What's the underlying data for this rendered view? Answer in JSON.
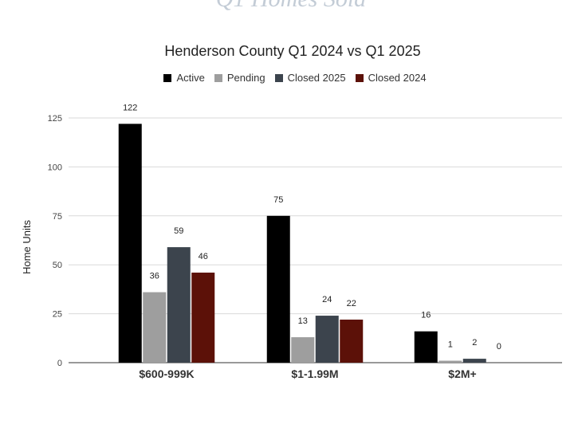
{
  "page_heading": "Q1 Homes Sold",
  "chart_data": {
    "type": "bar",
    "title": "Henderson County Q1 2024 vs Q1 2025",
    "xlabel": "",
    "ylabel": "Home Units",
    "ylim": [
      0,
      125
    ],
    "yticks": [
      "0",
      "25",
      "50",
      "75",
      "100",
      "125"
    ],
    "grid": true,
    "legend_position": "top",
    "categories": [
      "$600-999K",
      "$1-1.99M",
      "$2M+"
    ],
    "series": [
      {
        "name": "Active",
        "color": "#000000",
        "values": [
          122,
          75,
          16
        ]
      },
      {
        "name": "Pending",
        "color": "#9e9e9e",
        "values": [
          36,
          13,
          1
        ]
      },
      {
        "name": "Closed 2025",
        "color": "#3c444d",
        "values": [
          59,
          24,
          2
        ]
      },
      {
        "name": "Closed 2024",
        "color": "#5c1108",
        "values": [
          46,
          22,
          0
        ]
      }
    ]
  }
}
